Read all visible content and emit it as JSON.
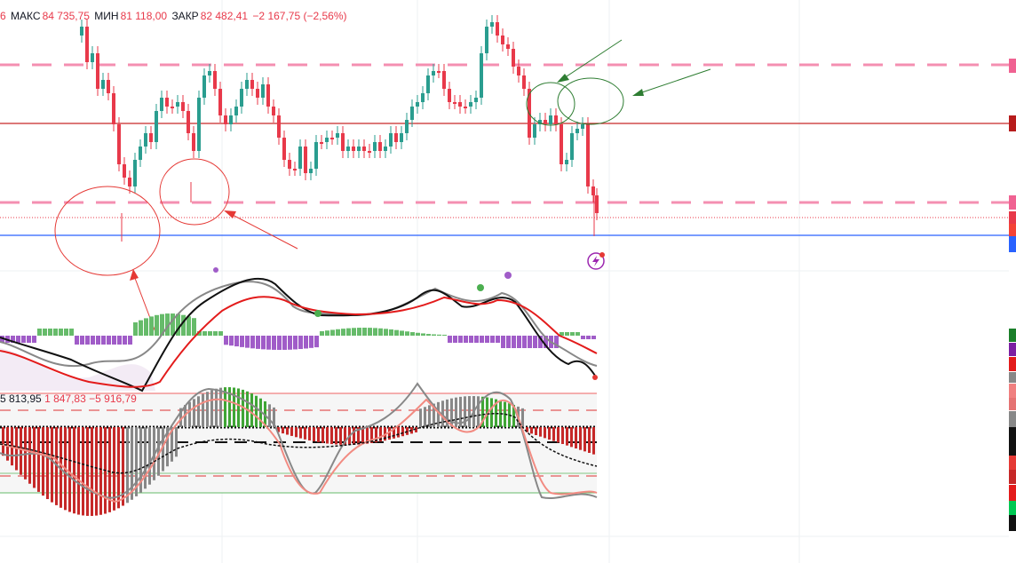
{
  "legend": {
    "prefix": "6",
    "high_label": "МАКС",
    "high_value": "84 735,75",
    "low_label": "МИН",
    "low_value": "81 118,00",
    "close_label": "ЗАКР",
    "close_value": "82 482,41",
    "change": "−2 167,75 (−2,56%)"
  },
  "oscillator_legend": {
    "v1": "5 813,95",
    "v2": "1 847,83",
    "v3": "−5 916,79"
  },
  "colors": {
    "bull": "#2a9d8f",
    "bear": "#e8394a",
    "pink_level": "#f48fb1",
    "resistance": "#c62828",
    "support": "#2962ff",
    "annotation_red": "#e53935",
    "annotation_green": "#2e7d32",
    "hist_green": "#66bb6a",
    "hist_purple": "#a05cc8"
  },
  "icons": {
    "event": "lightning-event-icon"
  }
}
